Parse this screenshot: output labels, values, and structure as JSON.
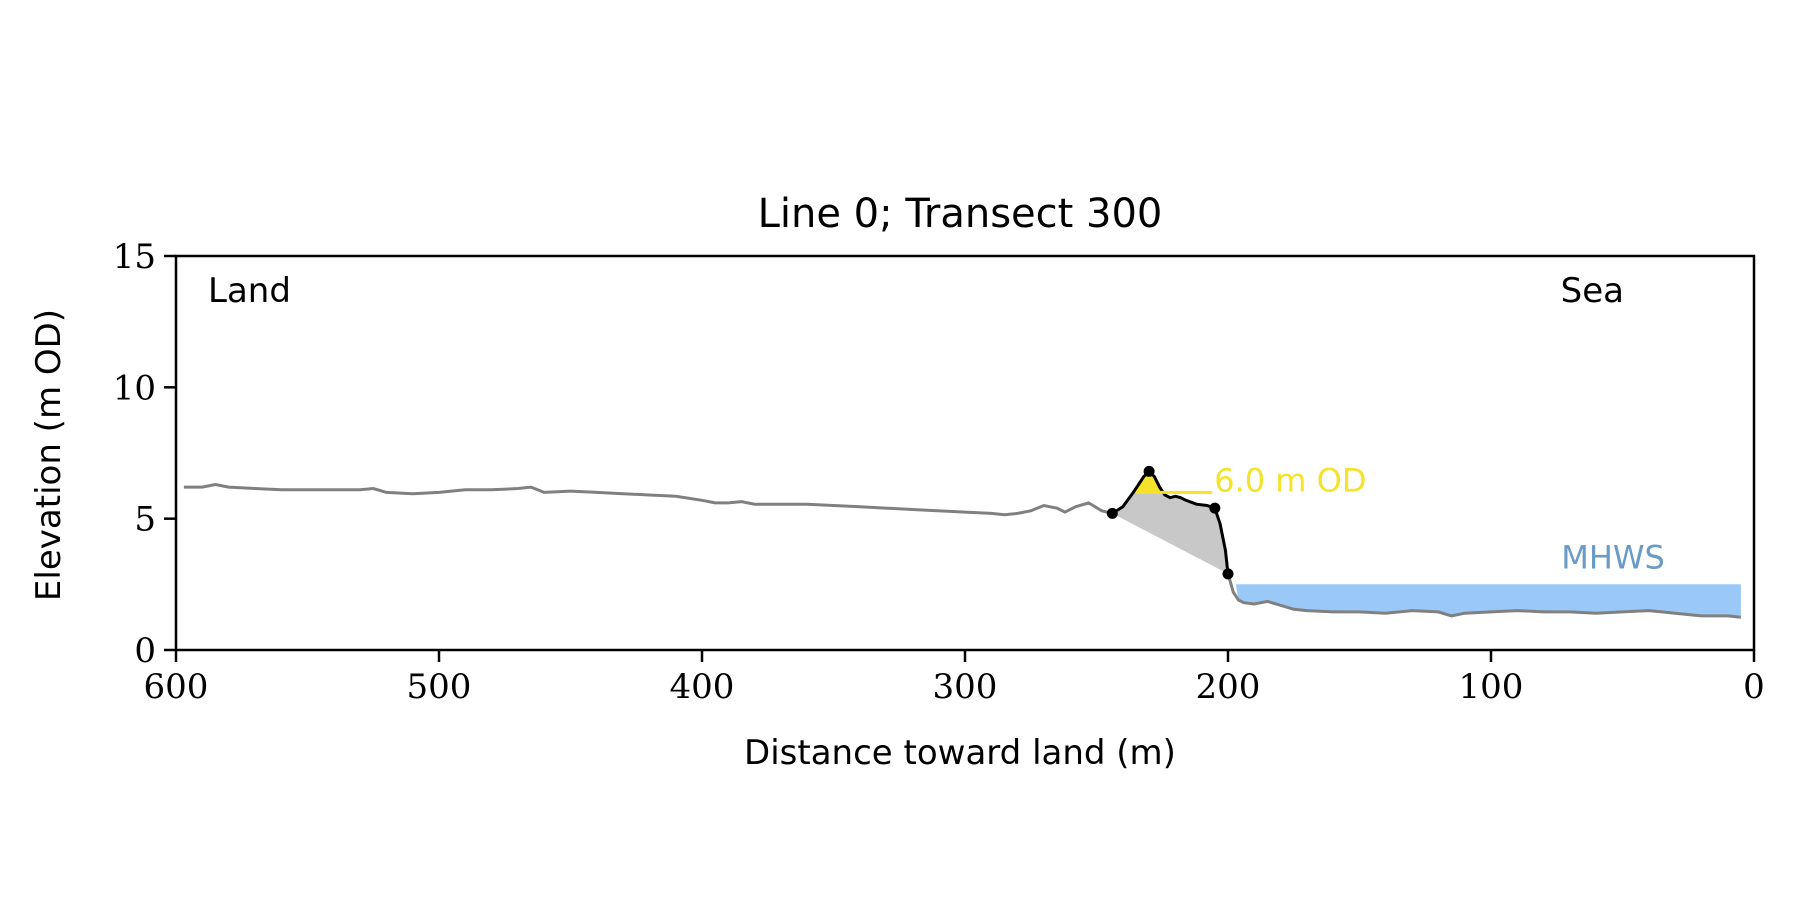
{
  "chart_data": {
    "type": "line",
    "title": "Line 0; Transect 300",
    "xlabel": "Distance toward land (m)",
    "ylabel": "Elevation (m OD)",
    "xlim": [
      600,
      0
    ],
    "ylim": [
      0,
      15
    ],
    "x_ticks": [
      600,
      500,
      400,
      300,
      200,
      100,
      0
    ],
    "y_ticks": [
      0,
      5,
      10,
      15
    ],
    "grid": false,
    "land_label": "Land",
    "sea_label": "Sea",
    "profile": {
      "color": "#808080",
      "x": [
        597,
        590,
        585,
        580,
        570,
        560,
        550,
        540,
        530,
        525,
        520,
        510,
        500,
        490,
        480,
        470,
        465,
        460,
        450,
        440,
        430,
        420,
        410,
        400,
        395,
        390,
        385,
        380,
        360,
        340,
        320,
        300,
        290,
        285,
        280,
        275,
        270,
        265,
        262,
        258,
        253,
        248,
        244
      ],
      "y": [
        6.2,
        6.2,
        6.3,
        6.2,
        6.15,
        6.1,
        6.1,
        6.1,
        6.1,
        6.15,
        6.0,
        5.95,
        6.0,
        6.1,
        6.1,
        6.15,
        6.2,
        6.0,
        6.05,
        6.0,
        5.95,
        5.9,
        5.85,
        5.7,
        5.6,
        5.6,
        5.65,
        5.55,
        5.55,
        5.45,
        5.35,
        5.25,
        5.2,
        5.15,
        5.2,
        5.3,
        5.5,
        5.4,
        5.25,
        5.45,
        5.6,
        5.3,
        5.2
      ]
    },
    "seaward_profile": {
      "color": "#808080",
      "x": [
        200,
        198,
        196,
        194,
        190,
        185,
        180,
        175,
        170,
        160,
        150,
        140,
        130,
        120,
        115,
        110,
        100,
        90,
        80,
        70,
        60,
        50,
        40,
        35,
        30,
        20,
        10,
        5
      ],
      "y": [
        2.9,
        2.2,
        1.9,
        1.8,
        1.75,
        1.85,
        1.7,
        1.55,
        1.5,
        1.45,
        1.45,
        1.4,
        1.5,
        1.45,
        1.3,
        1.4,
        1.45,
        1.5,
        1.45,
        1.45,
        1.4,
        1.45,
        1.5,
        1.45,
        1.4,
        1.3,
        1.3,
        1.25
      ]
    },
    "dune_profile": {
      "color": "#000000",
      "x": [
        244,
        240,
        236,
        232,
        230,
        228,
        226,
        224,
        222,
        220,
        218,
        216,
        212,
        208,
        205,
        203,
        201,
        200
      ],
      "y": [
        5.2,
        5.45,
        6.0,
        6.6,
        6.8,
        6.6,
        6.2,
        5.9,
        5.8,
        5.85,
        5.8,
        5.7,
        5.55,
        5.5,
        5.4,
        4.8,
        3.8,
        2.9
      ]
    },
    "key_points": [
      {
        "x": 244,
        "y": 5.2
      },
      {
        "x": 230,
        "y": 6.8
      },
      {
        "x": 205,
        "y": 5.4
      },
      {
        "x": 200,
        "y": 2.9
      }
    ],
    "threshold": {
      "label": "6.0 m OD",
      "value": 6.0,
      "x_from": 235,
      "x_to": 206,
      "color": "#F5E22A"
    },
    "mhws": {
      "label": "MHWS",
      "value": 2.5,
      "x_from": 197,
      "x_to": 5,
      "color": "#9BC9F7",
      "label_color": "#6A9BC7"
    },
    "colors": {
      "dune_fill": "#C8C8C8",
      "axes": "#000000"
    }
  }
}
